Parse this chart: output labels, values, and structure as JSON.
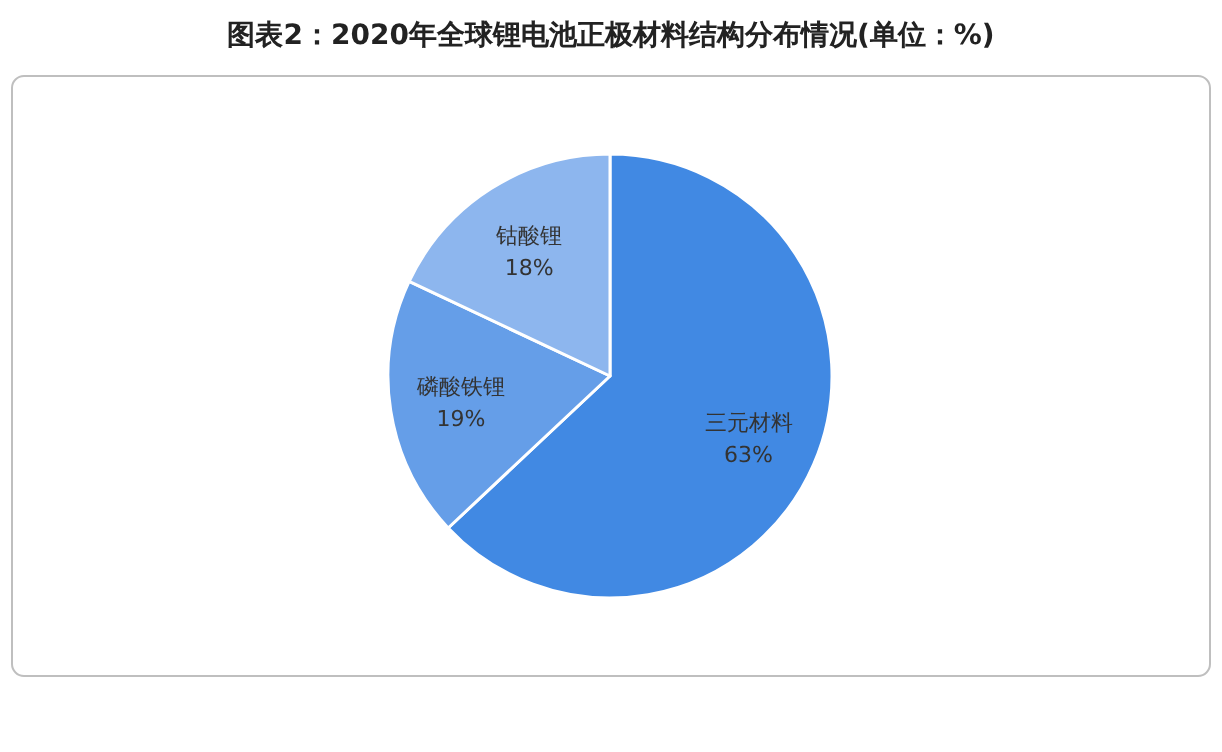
{
  "chart_data": {
    "type": "pie",
    "title": "图表2：2020年全球锂电池正极材料结构分布情况(单位：%)",
    "categories": [
      "三元材料",
      "磷酸铁锂",
      "钴酸锂"
    ],
    "values": [
      63,
      19,
      18
    ],
    "colors": [
      "#4189e3",
      "#659ee8",
      "#8db6ee"
    ],
    "value_labels": [
      "63%",
      "19%",
      "18%"
    ]
  }
}
